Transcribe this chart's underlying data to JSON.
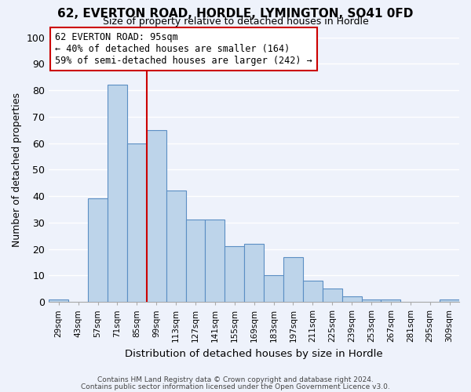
{
  "title": "62, EVERTON ROAD, HORDLE, LYMINGTON, SO41 0FD",
  "subtitle": "Size of property relative to detached houses in Hordle",
  "xlabel": "Distribution of detached houses by size in Hordle",
  "ylabel": "Number of detached properties",
  "bar_labels": [
    "29sqm",
    "43sqm",
    "57sqm",
    "71sqm",
    "85sqm",
    "99sqm",
    "113sqm",
    "127sqm",
    "141sqm",
    "155sqm",
    "169sqm",
    "183sqm",
    "197sqm",
    "211sqm",
    "225sqm",
    "239sqm",
    "253sqm",
    "267sqm",
    "281sqm",
    "295sqm",
    "309sqm"
  ],
  "bar_values": [
    1,
    0,
    39,
    82,
    60,
    65,
    42,
    31,
    31,
    21,
    22,
    10,
    17,
    8,
    5,
    2,
    1,
    1,
    0,
    0,
    1
  ],
  "bar_color": "#bdd4ea",
  "bar_edge_color": "#5b8ec4",
  "background_color": "#eef2fb",
  "grid_color": "#ffffff",
  "vline_color": "#cc0000",
  "annotation_title": "62 EVERTON ROAD: 95sqm",
  "annotation_line1": "← 40% of detached houses are smaller (164)",
  "annotation_line2": "59% of semi-detached houses are larger (242) →",
  "annotation_box_edge_color": "#cc0000",
  "ylim": [
    0,
    100
  ],
  "yticks": [
    0,
    10,
    20,
    30,
    40,
    50,
    60,
    70,
    80,
    90,
    100
  ],
  "footer1": "Contains HM Land Registry data © Crown copyright and database right 2024.",
  "footer2": "Contains public sector information licensed under the Open Government Licence v3.0."
}
